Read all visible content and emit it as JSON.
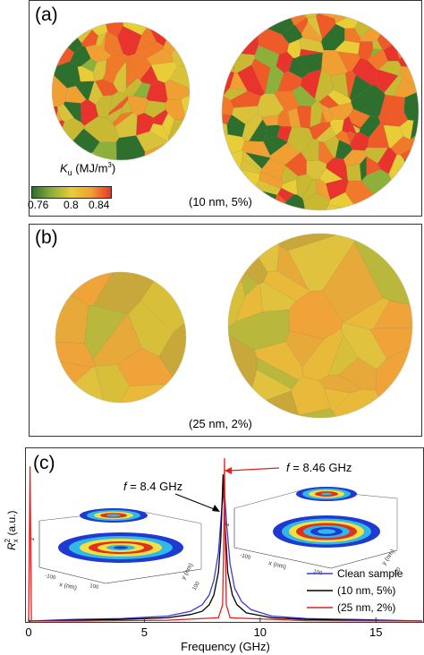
{
  "panel_a": {
    "label": "(a)",
    "annotation": "(10 nm, 5%)",
    "colorbar": {
      "title_symbol": "K",
      "title_subscript": "u",
      "title_unit": " (MJ/m",
      "title_unit_sup": "3",
      "title_unit_close": ")",
      "ticks": [
        "0.76",
        "0.8",
        "0.84"
      ],
      "colors": [
        "#2e6f2e",
        "#8db03a",
        "#e8cc38",
        "#f0a032",
        "#e8342c"
      ]
    }
  },
  "panel_b": {
    "label": "(b)",
    "annotation": "(25 nm, 2%)"
  },
  "panel_c": {
    "label": "(c)",
    "peak_left_symbol": "f",
    "peak_left_text": " = 8.4 GHz",
    "peak_right_symbol": "f",
    "peak_right_text": " = 8.46 GHz",
    "colors": {
      "clean": "#3b3bd6",
      "ten": "#000000",
      "twentyfive": "#e02020"
    },
    "inset_axis_labels": [
      "x (nm)",
      "y (nm)",
      "z"
    ],
    "inset_tick_labels": [
      "-100",
      "0",
      "100"
    ]
  },
  "chart_data": {
    "type": "line",
    "xlabel": "Frequency (GHz)",
    "ylabel_symbol": "R",
    "ylabel_sub": "x",
    "ylabel_sup": "2",
    "ylabel_unit": " (a.u.)",
    "xlim": [
      0,
      17
    ],
    "xticks": [
      0,
      5,
      10,
      15
    ],
    "xtick_labels": [
      "0",
      "5",
      "10",
      "15"
    ],
    "legend_position": "bottom-right",
    "series": [
      {
        "name": "Clean sample",
        "x": [
          0,
          2,
          4,
          6,
          7,
          7.5,
          7.8,
          8.0,
          8.2,
          8.35,
          8.45,
          8.55,
          8.7,
          8.9,
          9.2,
          9.6,
          10.5,
          12,
          14,
          17
        ],
        "y": [
          0.0,
          0.01,
          0.015,
          0.03,
          0.06,
          0.1,
          0.16,
          0.25,
          0.42,
          0.7,
          0.82,
          0.6,
          0.35,
          0.2,
          0.12,
          0.07,
          0.03,
          0.015,
          0.01,
          0.0
        ]
      },
      {
        "name": "(10 nm, 5%)",
        "x": [
          0,
          2,
          4,
          6,
          7,
          7.5,
          7.8,
          8.0,
          8.2,
          8.3,
          8.4,
          8.5,
          8.6,
          8.8,
          9.0,
          9.4,
          10.5,
          12,
          14,
          17
        ],
        "y": [
          0.0,
          0.005,
          0.01,
          0.02,
          0.04,
          0.06,
          0.1,
          0.16,
          0.3,
          0.5,
          0.9,
          0.55,
          0.3,
          0.16,
          0.1,
          0.05,
          0.02,
          0.01,
          0.005,
          0.0
        ]
      },
      {
        "name": "(25 nm, 2%)",
        "x": [
          0,
          0.06,
          0.12,
          0.3,
          2,
          6,
          8.2,
          8.38,
          8.44,
          8.46,
          8.48,
          8.54,
          8.7,
          12,
          17
        ],
        "y": [
          0.0,
          0.95,
          0.0,
          0.0,
          0.0,
          0.005,
          0.02,
          0.1,
          0.6,
          1.0,
          0.6,
          0.1,
          0.02,
          0.002,
          0.0
        ]
      }
    ]
  }
}
